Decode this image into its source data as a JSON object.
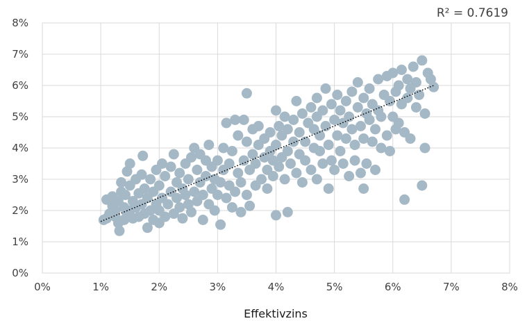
{
  "chart_data": {
    "type": "scatter",
    "title": "",
    "xlabel": "Effektivzins",
    "ylabel": "",
    "xlim": [
      0,
      8
    ],
    "ylim": [
      0,
      8
    ],
    "x_ticks": [
      "0%",
      "1%",
      "2%",
      "3%",
      "4%",
      "5%",
      "6%",
      "7%",
      "8%"
    ],
    "y_ticks": [
      "0%",
      "1%",
      "2%",
      "3%",
      "4%",
      "5%",
      "6%",
      "7%",
      "8%"
    ],
    "grid": "both",
    "point_color": "#a5b8c5",
    "gridline_color": "#d9d9d9",
    "trendline": {
      "type": "linear",
      "style": "dotted",
      "color": "#000000",
      "from": [
        1.0,
        1.65
      ],
      "to": [
        6.7,
        6.0
      ]
    },
    "annotation": "R² = 0.7619",
    "series": [
      {
        "values": [
          [
            1.05,
            1.7
          ],
          [
            1.1,
            1.75
          ],
          [
            1.1,
            2.35
          ],
          [
            1.15,
            1.9
          ],
          [
            1.2,
            2.15
          ],
          [
            1.2,
            2.45
          ],
          [
            1.25,
            1.8
          ],
          [
            1.25,
            2.0
          ],
          [
            1.3,
            1.6
          ],
          [
            1.3,
            2.3
          ],
          [
            1.32,
            1.35
          ],
          [
            1.35,
            2.6
          ],
          [
            1.35,
            2.9
          ],
          [
            1.4,
            1.7
          ],
          [
            1.4,
            2.1
          ],
          [
            1.42,
            2.5
          ],
          [
            1.45,
            1.85
          ],
          [
            1.45,
            3.25
          ],
          [
            1.5,
            2.0
          ],
          [
            1.5,
            2.8
          ],
          [
            1.5,
            3.5
          ],
          [
            1.55,
            1.75
          ],
          [
            1.55,
            2.3
          ],
          [
            1.6,
            2.1
          ],
          [
            1.6,
            3.0
          ],
          [
            1.65,
            1.8
          ],
          [
            1.65,
            2.55
          ],
          [
            1.7,
            2.2
          ],
          [
            1.7,
            3.15
          ],
          [
            1.72,
            3.75
          ],
          [
            1.75,
            1.9
          ],
          [
            1.75,
            2.7
          ],
          [
            1.8,
            1.45
          ],
          [
            1.8,
            2.4
          ],
          [
            1.85,
            2.0
          ],
          [
            1.85,
            3.0
          ],
          [
            1.9,
            1.7
          ],
          [
            1.9,
            2.6
          ],
          [
            1.95,
            2.2
          ],
          [
            1.95,
            3.3
          ],
          [
            2.0,
            1.6
          ],
          [
            2.0,
            2.0
          ],
          [
            2.0,
            2.8
          ],
          [
            2.05,
            2.4
          ],
          [
            2.05,
            3.5
          ],
          [
            2.1,
            1.8
          ],
          [
            2.1,
            3.1
          ],
          [
            2.15,
            2.2
          ],
          [
            2.2,
            2.6
          ],
          [
            2.2,
            3.4
          ],
          [
            2.25,
            1.9
          ],
          [
            2.25,
            3.8
          ],
          [
            2.3,
            2.4
          ],
          [
            2.3,
            2.9
          ],
          [
            2.35,
            2.1
          ],
          [
            2.35,
            3.2
          ],
          [
            2.4,
            1.75
          ],
          [
            2.4,
            2.7
          ],
          [
            2.45,
            2.5
          ],
          [
            2.45,
            3.5
          ],
          [
            2.5,
            2.2
          ],
          [
            2.5,
            3.0
          ],
          [
            2.55,
            1.95
          ],
          [
            2.55,
            3.7
          ],
          [
            2.6,
            2.6
          ],
          [
            2.6,
            4.0
          ],
          [
            2.65,
            2.3
          ],
          [
            2.65,
            3.3
          ],
          [
            2.7,
            2.9
          ],
          [
            2.7,
            3.8
          ],
          [
            2.75,
            1.7
          ],
          [
            2.75,
            2.5
          ],
          [
            2.8,
            3.1
          ],
          [
            2.8,
            3.6
          ],
          [
            2.85,
            2.2
          ],
          [
            2.85,
            4.1
          ],
          [
            2.9,
            2.7
          ],
          [
            2.9,
            3.4
          ],
          [
            2.95,
            2.0
          ],
          [
            2.95,
            3.0
          ],
          [
            3.0,
            2.5
          ],
          [
            3.0,
            3.6
          ],
          [
            3.05,
            1.55
          ],
          [
            3.05,
            2.9
          ],
          [
            3.1,
            3.3
          ],
          [
            3.1,
            4.0
          ],
          [
            3.15,
            2.4
          ],
          [
            3.15,
            4.8
          ],
          [
            3.2,
            2.8
          ],
          [
            3.2,
            3.5
          ],
          [
            3.25,
            2.1
          ],
          [
            3.25,
            3.9
          ],
          [
            3.3,
            2.6
          ],
          [
            3.3,
            4.9
          ],
          [
            3.35,
            3.2
          ],
          [
            3.35,
            4.4
          ],
          [
            3.4,
            1.95
          ],
          [
            3.4,
            2.9
          ],
          [
            3.45,
            3.6
          ],
          [
            3.45,
            4.9
          ],
          [
            3.5,
            2.5
          ],
          [
            3.5,
            4.2
          ],
          [
            3.5,
            5.75
          ],
          [
            3.55,
            2.15
          ],
          [
            3.55,
            3.3
          ],
          [
            3.6,
            3.8
          ],
          [
            3.6,
            4.6
          ],
          [
            3.65,
            2.8
          ],
          [
            3.65,
            3.5
          ],
          [
            3.7,
            4.1
          ],
          [
            3.7,
            4.7
          ],
          [
            3.75,
            3.0
          ],
          [
            3.8,
            3.7
          ],
          [
            3.8,
            4.3
          ],
          [
            3.85,
            2.7
          ],
          [
            3.85,
            3.3
          ],
          [
            3.9,
            3.9
          ],
          [
            3.9,
            4.5
          ],
          [
            3.95,
            3.1
          ],
          [
            3.95,
            3.6
          ],
          [
            4.0,
            1.85
          ],
          [
            4.0,
            4.1
          ],
          [
            4.0,
            5.2
          ],
          [
            4.05,
            3.4
          ],
          [
            4.05,
            4.7
          ],
          [
            4.1,
            3.7
          ],
          [
            4.1,
            4.4
          ],
          [
            4.15,
            3.0
          ],
          [
            4.15,
            5.0
          ],
          [
            4.2,
            1.95
          ],
          [
            4.2,
            3.9
          ],
          [
            4.2,
            4.6
          ],
          [
            4.25,
            3.5
          ],
          [
            4.3,
            4.2
          ],
          [
            4.3,
            4.9
          ],
          [
            4.35,
            3.2
          ],
          [
            4.35,
            5.5
          ],
          [
            4.4,
            3.8
          ],
          [
            4.4,
            4.5
          ],
          [
            4.45,
            2.9
          ],
          [
            4.45,
            5.1
          ],
          [
            4.5,
            3.6
          ],
          [
            4.5,
            4.2
          ],
          [
            4.55,
            4.8
          ],
          [
            4.6,
            3.3
          ],
          [
            4.6,
            5.3
          ],
          [
            4.65,
            4.0
          ],
          [
            4.65,
            4.6
          ],
          [
            4.7,
            3.0
          ],
          [
            4.7,
            5.0
          ],
          [
            4.7,
            5.6
          ],
          [
            4.75,
            3.9
          ],
          [
            4.75,
            4.4
          ],
          [
            4.8,
            3.5
          ],
          [
            4.8,
            5.2
          ],
          [
            4.85,
            4.7
          ],
          [
            4.85,
            5.9
          ],
          [
            4.9,
            2.7
          ],
          [
            4.9,
            4.1
          ],
          [
            4.95,
            3.6
          ],
          [
            4.95,
            5.4
          ],
          [
            5.0,
            3.3
          ],
          [
            5.0,
            4.9
          ],
          [
            5.05,
            4.4
          ],
          [
            5.05,
            5.7
          ],
          [
            5.1,
            3.9
          ],
          [
            5.1,
            5.2
          ],
          [
            5.15,
            3.5
          ],
          [
            5.15,
            4.8
          ],
          [
            5.2,
            4.3
          ],
          [
            5.2,
            5.5
          ],
          [
            5.25,
            3.1
          ],
          [
            5.25,
            5.0
          ],
          [
            5.3,
            4.6
          ],
          [
            5.3,
            5.8
          ],
          [
            5.35,
            3.6
          ],
          [
            5.35,
            4.1
          ],
          [
            5.4,
            5.3
          ],
          [
            5.4,
            6.1
          ],
          [
            5.45,
            3.2
          ],
          [
            5.45,
            4.7
          ],
          [
            5.5,
            2.7
          ],
          [
            5.5,
            4.3
          ],
          [
            5.5,
            5.6
          ],
          [
            5.55,
            3.5
          ],
          [
            5.55,
            5.1
          ],
          [
            5.6,
            4.9
          ],
          [
            5.6,
            5.9
          ],
          [
            5.65,
            4.2
          ],
          [
            5.65,
            5.4
          ],
          [
            5.7,
            3.3
          ],
          [
            5.7,
            4.6
          ],
          [
            5.75,
            5.2
          ],
          [
            5.75,
            6.2
          ],
          [
            5.8,
            4.0
          ],
          [
            5.8,
            5.0
          ],
          [
            5.85,
            5.7
          ],
          [
            5.9,
            4.4
          ],
          [
            5.9,
            6.3
          ],
          [
            5.95,
            3.9
          ],
          [
            5.95,
            5.5
          ],
          [
            6.0,
            5.0
          ],
          [
            6.0,
            6.4
          ],
          [
            6.05,
            4.6
          ],
          [
            6.05,
            5.8
          ],
          [
            6.1,
            4.8
          ],
          [
            6.1,
            6.0
          ],
          [
            6.15,
            5.4
          ],
          [
            6.15,
            6.5
          ],
          [
            6.2,
            2.35
          ],
          [
            6.2,
            4.5
          ],
          [
            6.25,
            5.6
          ],
          [
            6.25,
            6.2
          ],
          [
            6.3,
            4.3
          ],
          [
            6.3,
            5.9
          ],
          [
            6.35,
            6.6
          ],
          [
            6.4,
            5.3
          ],
          [
            6.4,
            6.1
          ],
          [
            6.45,
            5.7
          ],
          [
            6.5,
            2.8
          ],
          [
            6.5,
            6.8
          ],
          [
            6.55,
            4.0
          ],
          [
            6.55,
            5.1
          ],
          [
            6.6,
            6.4
          ],
          [
            6.65,
            6.2
          ],
          [
            6.7,
            5.95
          ]
        ]
      }
    ]
  }
}
